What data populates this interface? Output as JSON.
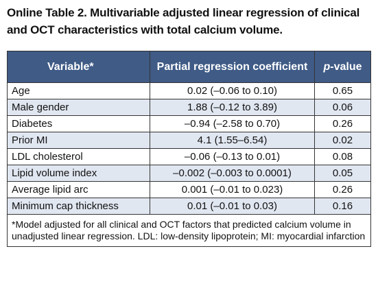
{
  "caption": "Online Table 2. Multivariable adjusted linear regression of clinical and OCT characteristics with total calcium volume.",
  "headers": {
    "variable": "Variable*",
    "coefficient": "Partial regression coefficient",
    "p_italic": "p",
    "p_rest": "-value"
  },
  "rows": [
    {
      "name": "Age",
      "coef": "0.02 (–0.06 to 0.10)",
      "p": "0.65"
    },
    {
      "name": "Male gender",
      "coef": "1.88 (–0.12 to 3.89)",
      "p": "0.06"
    },
    {
      "name": "Diabetes",
      "coef": "–0.94 (–2.58 to 0.70)",
      "p": "0.26"
    },
    {
      "name": "Prior MI",
      "coef": "4.1 (1.55–6.54)",
      "p": "0.02"
    },
    {
      "name": "LDL cholesterol",
      "coef": "–0.06 (–0.13 to 0.01)",
      "p": "0.08"
    },
    {
      "name": "Lipid volume index",
      "coef": "–0.002 (–0.003 to 0.0001)",
      "p": "0.05"
    },
    {
      "name": "Average lipid arc",
      "coef": "0.001 (–0.01 to 0.023)",
      "p": "0.26"
    },
    {
      "name": "Minimum cap thickness",
      "coef": "0.01 (–0.01 to 0.03)",
      "p": "0.16"
    }
  ],
  "footnote": "*Model adjusted for all clinical and OCT factors that predicted calcium volume in unadjusted linear regression. LDL: low-density lipoprotein; MI: myocardial infarction",
  "colors": {
    "header_bg": "#3f5b86",
    "row_shade": "#e1e7f1"
  }
}
